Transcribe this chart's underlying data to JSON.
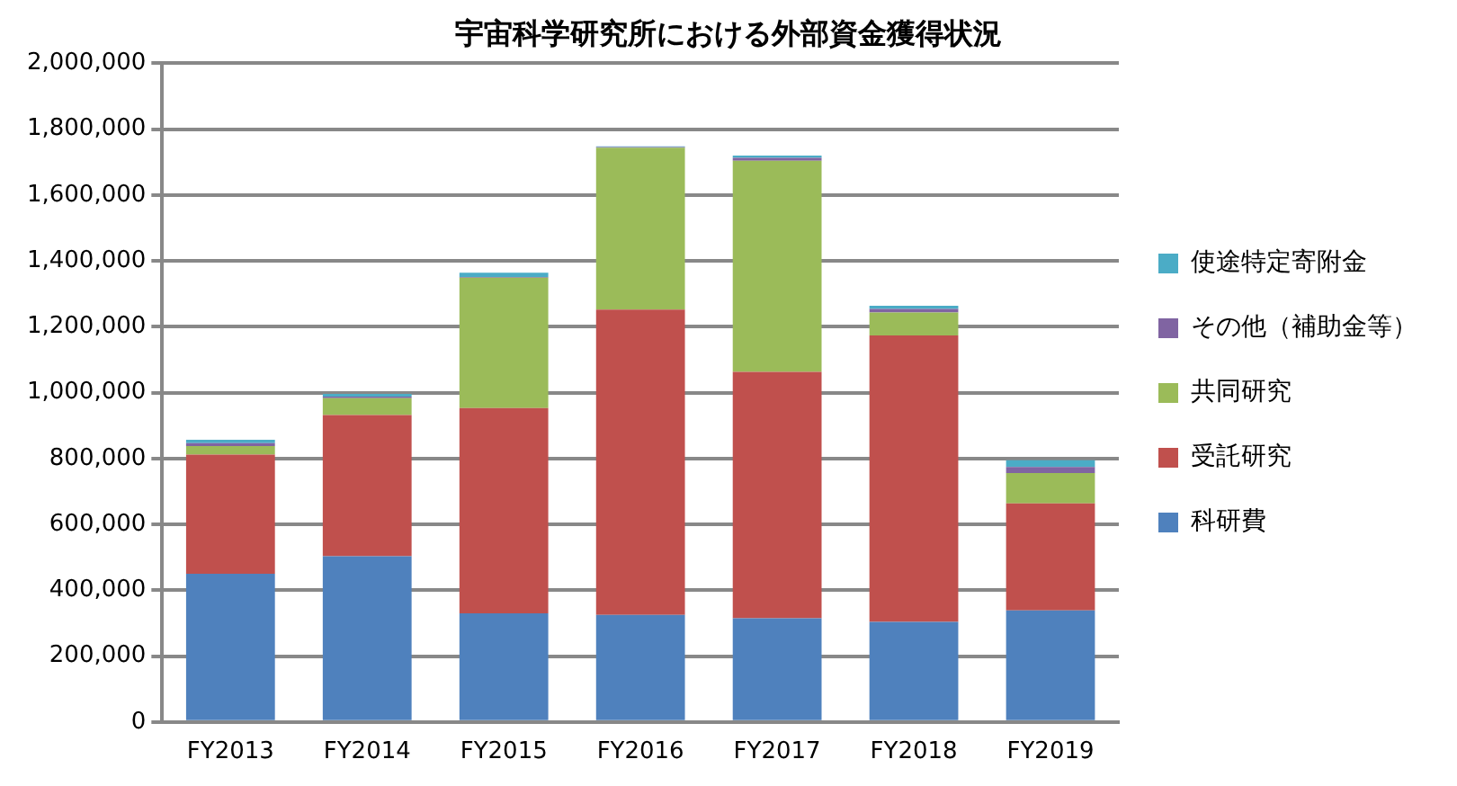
{
  "chart_data": {
    "type": "bar",
    "title": "宇宙科学研究所における外部資金獲得状況",
    "categories": [
      "FY2013",
      "FY2014",
      "FY2015",
      "FY2016",
      "FY2017",
      "FY2018",
      "FY2019"
    ],
    "stacked": true,
    "series": [
      {
        "name": "科研費",
        "color": "#4f81bd",
        "values": [
          450000,
          503000,
          330000,
          325000,
          315000,
          304000,
          339000
        ]
      },
      {
        "name": "受託研究",
        "color": "#c0504d",
        "values": [
          362000,
          429000,
          623000,
          927000,
          748000,
          870000,
          325000
        ]
      },
      {
        "name": "共同研究",
        "color": "#9bbb59",
        "values": [
          26000,
          51000,
          396000,
          492000,
          641000,
          69000,
          92000
        ]
      },
      {
        "name": "その他（補助金等）",
        "color": "#8064a2",
        "values": [
          9000,
          5000,
          2000,
          2000,
          9000,
          11000,
          18000
        ]
      },
      {
        "name": "使途特定寄附金",
        "color": "#4bacc6",
        "values": [
          10000,
          8000,
          13000,
          2000,
          7000,
          10000,
          21000
        ]
      }
    ],
    "ylim": [
      0,
      2000000
    ],
    "yticks": [
      0,
      {
        "value": 200000,
        "label": "200,000"
      },
      {
        "value": 400000,
        "label": "400,000"
      },
      {
        "value": 600000,
        "label": "600,000"
      },
      {
        "value": 800000,
        "label": "800,000"
      },
      {
        "value": 1000000,
        "label": "1,000,000"
      },
      {
        "value": 1200000,
        "label": "1,200,000"
      },
      {
        "value": 1400000,
        "label": "1,400,000"
      },
      {
        "value": 1600000,
        "label": "1,600,000"
      },
      {
        "value": 1800000,
        "label": "1,800,000"
      },
      {
        "value": 2000000,
        "label": "2,000,000"
      }
    ],
    "grid": "y",
    "legend": "right"
  }
}
